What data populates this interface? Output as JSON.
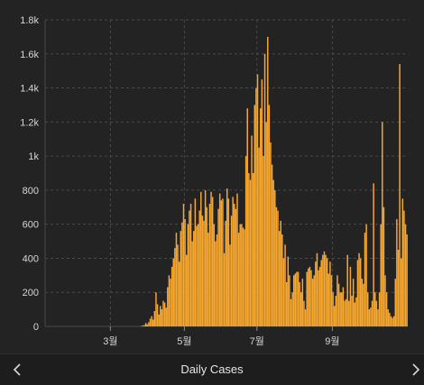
{
  "chart_data": {
    "type": "bar",
    "x_range_days": [
      0,
      250
    ],
    "ylim": [
      0,
      1800
    ],
    "yticks": [
      {
        "value": 0,
        "label": "0"
      },
      {
        "value": 200,
        "label": "200"
      },
      {
        "value": 400,
        "label": "400"
      },
      {
        "value": 600,
        "label": "600"
      },
      {
        "value": 800,
        "label": "800"
      },
      {
        "value": 1000,
        "label": "1k"
      },
      {
        "value": 1200,
        "label": "1.2k"
      },
      {
        "value": 1400,
        "label": "1.4k"
      },
      {
        "value": 1600,
        "label": "1.6k"
      },
      {
        "value": 1800,
        "label": "1.8k"
      }
    ],
    "xticks": [
      {
        "day": 45,
        "label": "3월"
      },
      {
        "day": 96,
        "label": "5월"
      },
      {
        "day": 146,
        "label": "7월"
      },
      {
        "day": 198,
        "label": "9월"
      }
    ],
    "grid": true,
    "bar_color": "#f9a82f",
    "values": [
      0,
      0,
      0,
      0,
      0,
      0,
      0,
      0,
      0,
      0,
      0,
      0,
      0,
      0,
      0,
      0,
      0,
      0,
      0,
      0,
      0,
      0,
      0,
      0,
      0,
      0,
      0,
      0,
      0,
      0,
      3,
      5,
      8,
      20,
      12,
      25,
      45,
      60,
      40,
      90,
      200,
      130,
      70,
      120,
      100,
      150,
      140,
      110,
      230,
      300,
      280,
      350,
      400,
      460,
      550,
      480,
      380,
      560,
      610,
      720,
      630,
      420,
      600,
      680,
      720,
      500,
      560,
      750,
      590,
      600,
      680,
      790,
      650,
      620,
      800,
      700,
      550,
      720,
      790,
      760,
      600,
      500,
      540,
      690,
      780,
      740,
      750,
      430,
      620,
      810,
      750,
      480,
      650,
      760,
      720,
      690,
      780,
      550,
      600,
      600,
      580,
      570,
      1000,
      1280,
      900,
      860,
      1120,
      900,
      1300,
      1400,
      1480,
      1050,
      1280,
      1450,
      1000,
      1600,
      1200,
      1700,
      1300,
      1080,
      950,
      860,
      800,
      700,
      680,
      560,
      620,
      540,
      400,
      480,
      260,
      410,
      300,
      160,
      200,
      300,
      310,
      320,
      320,
      260,
      200,
      280,
      150,
      100,
      320,
      340,
      350,
      330,
      280,
      300,
      380,
      430,
      330,
      350,
      390,
      420,
      440,
      420,
      400,
      310,
      380,
      300,
      200,
      120,
      180,
      300,
      250,
      200,
      200,
      230,
      150,
      160,
      420,
      150,
      350,
      180,
      280,
      140,
      170,
      390,
      430,
      400,
      280,
      250,
      550,
      600,
      200,
      100,
      110,
      150,
      840,
      200,
      150,
      100,
      200,
      600,
      1200,
      700,
      300,
      200,
      100,
      80,
      60,
      50,
      60,
      280,
      630,
      450,
      1540,
      400,
      750,
      680,
      600,
      540
    ]
  },
  "footer": {
    "title": "Daily Cases",
    "prev_icon": "chevron-left-icon",
    "next_icon": "chevron-right-icon"
  }
}
